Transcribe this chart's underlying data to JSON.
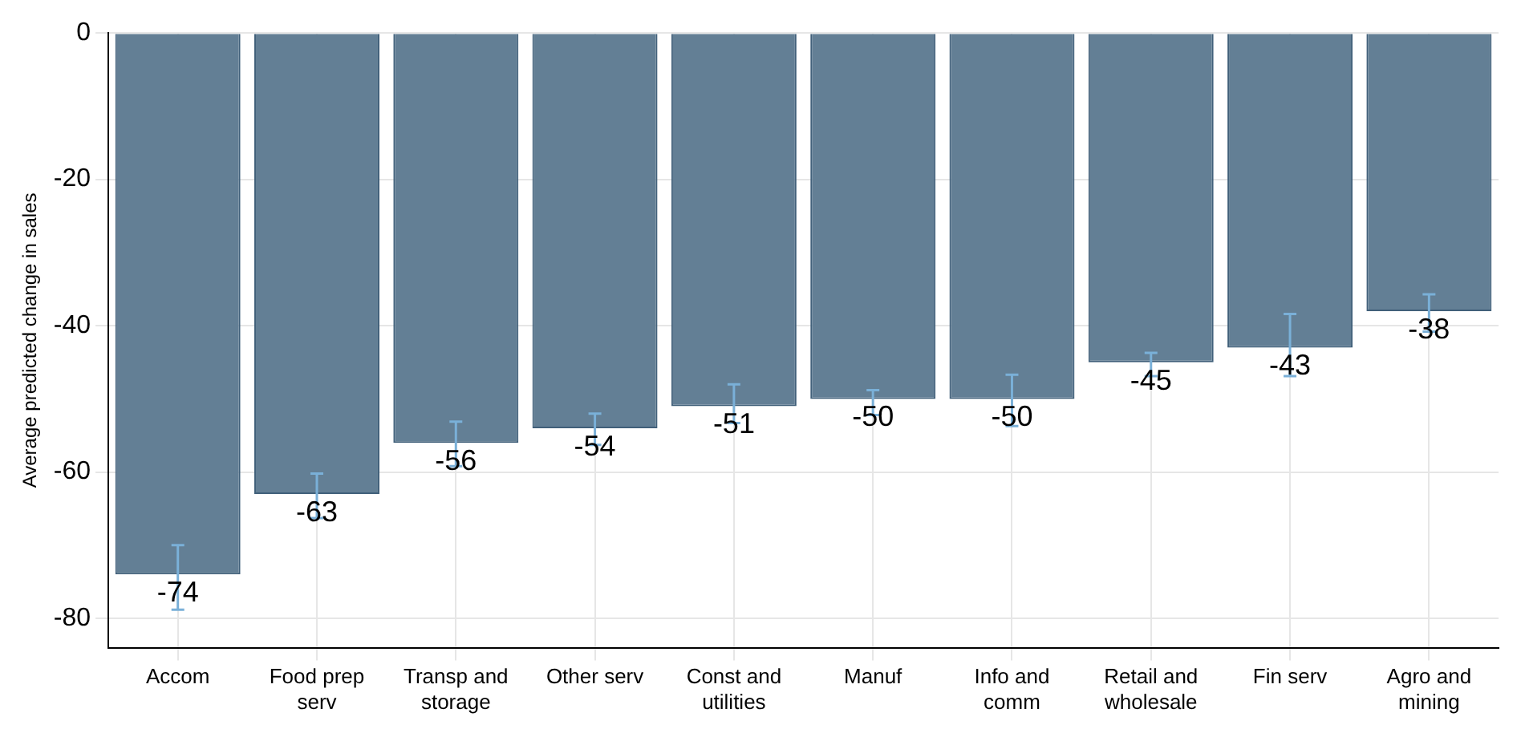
{
  "chart_data": {
    "type": "bar",
    "ylabel": "Average predicted change in sales",
    "categories": [
      "Accom",
      "Food prep serv",
      "Transp and storage",
      "Other serv",
      "Const and utilities",
      "Manuf",
      "Info and comm",
      "Retail and wholesale",
      "Fin serv",
      "Agro and mining"
    ],
    "values": [
      -74,
      -63,
      -56,
      -54,
      -51,
      -50,
      -50,
      -45,
      -43,
      -38
    ],
    "errors": [
      [
        -78.8,
        -70
      ],
      [
        -66.3,
        -60.2
      ],
      [
        -59.2,
        -53.1
      ],
      [
        -56.3,
        -52
      ],
      [
        -53.3,
        -48
      ],
      [
        -52.2,
        -48.8
      ],
      [
        -53.7,
        -46.7
      ],
      [
        -46.9,
        -43.7
      ],
      [
        -46.9,
        -38.4
      ],
      [
        -40.8,
        -35.7
      ]
    ],
    "color": "#637f95",
    "ylim": [
      -84,
      0
    ],
    "yticks": [
      0,
      -20,
      -40,
      -60,
      -80
    ],
    "grid": true,
    "data_labels": true
  }
}
